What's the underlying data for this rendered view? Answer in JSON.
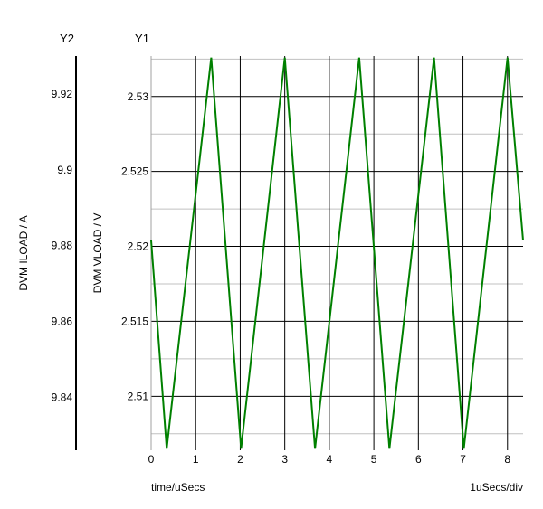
{
  "chart_data": {
    "type": "line",
    "y2_axis": {
      "name": "Y2",
      "label": "DVM ILOAD / A",
      "ticks": [
        "9.92",
        "9.9",
        "9.88",
        "9.86",
        "9.84"
      ],
      "tick_values": [
        9.92,
        9.9,
        9.88,
        9.86,
        9.84
      ],
      "range": [
        9.826,
        9.93
      ]
    },
    "y1_axis": {
      "name": "Y1",
      "label": "DVM VLOAD / V",
      "ticks": [
        "2.53",
        "2.525",
        "2.52",
        "2.515",
        "2.51"
      ],
      "tick_values": [
        2.53,
        2.525,
        2.52,
        2.515,
        2.51
      ],
      "range": [
        2.5064,
        2.5327
      ]
    },
    "x_axis": {
      "label": "time/uSecs",
      "scale_label": "1uSecs/div",
      "ticks": [
        "0",
        "1",
        "2",
        "3",
        "4",
        "5",
        "6",
        "7",
        "8"
      ],
      "tick_values": [
        0,
        1,
        2,
        3,
        4,
        5,
        6,
        7,
        8
      ],
      "range": [
        0,
        8.35
      ]
    },
    "grid": true,
    "series": [
      {
        "axis": "Y1",
        "color": "#008000",
        "x": [
          0,
          0.35,
          1.35,
          2.02,
          3.0,
          3.68,
          4.67,
          5.35,
          6.35,
          7.02,
          8.0,
          8.35
        ],
        "y": [
          2.5204,
          2.5065,
          2.5326,
          2.5065,
          2.5326,
          2.5065,
          2.5326,
          2.5065,
          2.5326,
          2.5065,
          2.5326,
          2.5204
        ]
      }
    ]
  }
}
